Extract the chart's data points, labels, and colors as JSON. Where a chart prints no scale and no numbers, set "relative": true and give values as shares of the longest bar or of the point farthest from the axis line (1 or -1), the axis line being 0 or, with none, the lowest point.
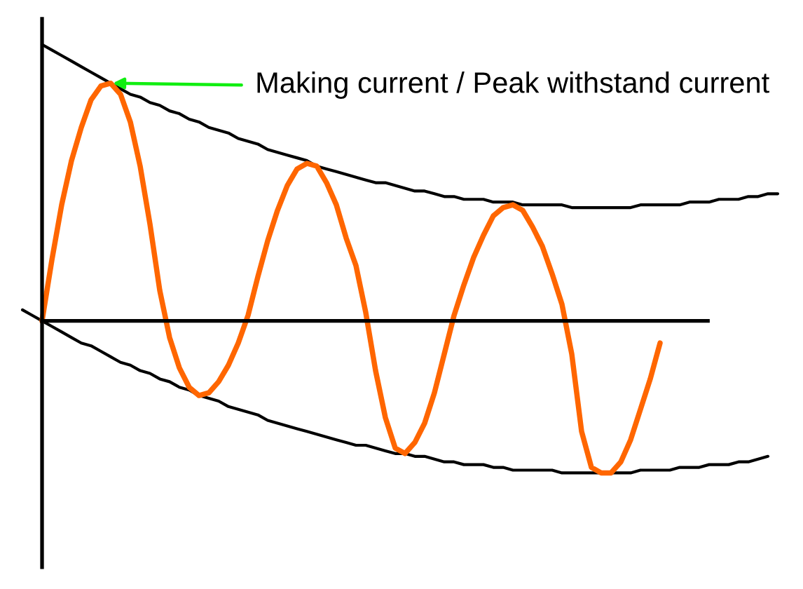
{
  "chart_data": {
    "type": "line",
    "relative": true,
    "categories": [
      null,
      null,
      null,
      null,
      null,
      null,
      null,
      null,
      null,
      null,
      null,
      null,
      null,
      null,
      null,
      null,
      null,
      null,
      null,
      null,
      null,
      null,
      null,
      null,
      null,
      null,
      null,
      null,
      null,
      null,
      null,
      null,
      null,
      null,
      null,
      null,
      null,
      null,
      null,
      null,
      null,
      null,
      null,
      null,
      null,
      null,
      null,
      null,
      null,
      null,
      null,
      null,
      null,
      null,
      null,
      null,
      null,
      null,
      null,
      null,
      null,
      null,
      null,
      null,
      null,
      null,
      null,
      null,
      null,
      null,
      null,
      null,
      null,
      null,
      null,
      null,
      null,
      null
    ],
    "series": [
      {
        "color": "#000000",
        "values": [
          null,
          null,
          1.0,
          0.98,
          0.96,
          0.94,
          0.92,
          0.9,
          0.88,
          0.86,
          0.84,
          0.82,
          0.81,
          0.79,
          0.78,
          0.76,
          0.75,
          0.73,
          0.72,
          0.7,
          0.69,
          0.68,
          0.66,
          0.65,
          0.64,
          0.62,
          0.61,
          0.6,
          0.59,
          0.58,
          0.56,
          0.55,
          0.54,
          0.53,
          0.52,
          0.51,
          0.5,
          0.5,
          0.49,
          0.48,
          0.47,
          0.47,
          0.46,
          0.45,
          0.45,
          0.44,
          0.44,
          0.44,
          0.43,
          0.43,
          0.43,
          0.42,
          0.42,
          0.42,
          0.42,
          0.42,
          0.41,
          0.41,
          0.41,
          0.41,
          0.41,
          0.41,
          0.41,
          0.42,
          0.42,
          0.42,
          0.42,
          0.42,
          0.43,
          0.43,
          0.43,
          0.44,
          0.44,
          0.44,
          0.45,
          0.45,
          0.46,
          0.46
        ]
      },
      {
        "color": "#000000",
        "values": [
          0.04,
          0.02,
          0.0,
          -0.02,
          -0.04,
          -0.06,
          -0.08,
          -0.09,
          -0.11,
          -0.13,
          -0.15,
          -0.16,
          -0.18,
          -0.19,
          -0.21,
          -0.22,
          -0.24,
          -0.25,
          -0.27,
          -0.28,
          -0.29,
          -0.31,
          -0.32,
          -0.33,
          -0.34,
          -0.36,
          -0.37,
          -0.38,
          -0.39,
          -0.4,
          -0.41,
          -0.42,
          -0.43,
          -0.44,
          -0.45,
          -0.45,
          -0.46,
          -0.47,
          -0.48,
          -0.48,
          -0.49,
          -0.49,
          -0.5,
          -0.51,
          -0.51,
          -0.52,
          -0.52,
          -0.52,
          -0.53,
          -0.53,
          -0.54,
          -0.54,
          -0.54,
          -0.54,
          -0.54,
          -0.55,
          -0.55,
          -0.55,
          -0.55,
          -0.55,
          -0.55,
          -0.55,
          -0.55,
          -0.54,
          -0.54,
          -0.54,
          -0.54,
          -0.53,
          -0.53,
          -0.53,
          -0.52,
          -0.52,
          -0.52,
          -0.51,
          -0.51,
          -0.5,
          -0.49,
          null
        ]
      },
      {
        "color": "#ff6600",
        "values": [
          null,
          null,
          0.0,
          0.22,
          0.42,
          0.58,
          0.7,
          0.8,
          0.85,
          0.86,
          0.82,
          0.72,
          0.56,
          0.35,
          0.11,
          -0.06,
          -0.17,
          -0.24,
          -0.27,
          -0.26,
          -0.22,
          -0.16,
          -0.08,
          0.02,
          0.16,
          0.29,
          0.4,
          0.49,
          0.55,
          0.57,
          0.56,
          0.5,
          0.42,
          0.3,
          0.2,
          0.03,
          -0.18,
          -0.35,
          -0.46,
          -0.48,
          -0.44,
          -0.37,
          -0.26,
          -0.12,
          0.02,
          0.13,
          0.23,
          0.31,
          0.38,
          0.41,
          0.42,
          0.4,
          0.34,
          0.27,
          0.17,
          0.06,
          -0.12,
          -0.4,
          -0.53,
          -0.55,
          -0.55,
          -0.51,
          -0.43,
          -0.32,
          -0.21,
          -0.08,
          null,
          null,
          null,
          null,
          null,
          null,
          null,
          null,
          null,
          null,
          null,
          null
        ]
      }
    ],
    "annotations": [
      "Making current / Peak withstand current"
    ]
  }
}
